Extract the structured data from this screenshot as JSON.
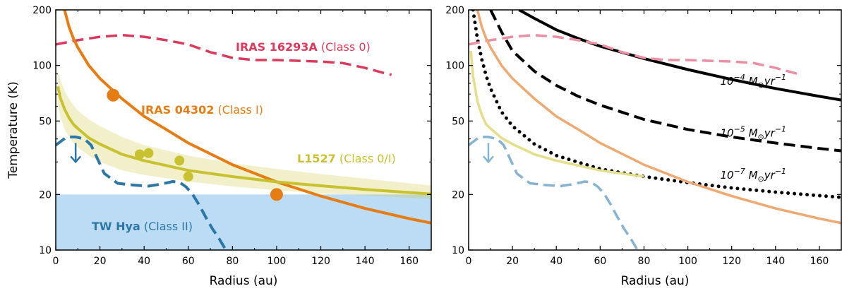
{
  "chart_data": [
    {
      "type": "line",
      "xlabel": "Radius (au)",
      "ylabel": "Temperature (K)",
      "xlim": [
        0,
        170
      ],
      "ylim": [
        10,
        200
      ],
      "yscale": "log",
      "xticks": [
        "0",
        "20",
        "40",
        "60",
        "80",
        "100",
        "120",
        "140",
        "160"
      ],
      "yticks": [
        "10",
        "20",
        "50",
        "100",
        "200"
      ],
      "shaded_regions": [
        {
          "name": "TW Hya",
          "label": "(Class II)",
          "ymin": 10,
          "ymax": 20,
          "color": "#bcdcf5"
        }
      ],
      "series": [
        {
          "name": "IRAS 16293A",
          "label": "(Class 0)",
          "color": "#dc3a5c",
          "style": "dashed",
          "x": [
            0,
            10,
            20,
            30,
            40,
            50,
            60,
            70,
            80,
            90,
            100,
            110,
            120,
            130,
            140,
            150,
            152
          ],
          "y": [
            130,
            137,
            143,
            146,
            143,
            137,
            130,
            118,
            110,
            107,
            107,
            106,
            105,
            103,
            97,
            90,
            89
          ]
        },
        {
          "name": "IRAS 04302",
          "label": "(Class I)",
          "color": "#e57c14",
          "style": "solid",
          "x": [
            4,
            6,
            8,
            10,
            15,
            20,
            30,
            40,
            50,
            60,
            80,
            100,
            120,
            140,
            160,
            170
          ],
          "y": [
            200,
            162,
            140,
            125,
            100,
            85,
            66,
            53,
            45,
            38,
            29,
            23.4,
            19.6,
            16.8,
            14.8,
            14.0
          ],
          "points": {
            "x": [
              26,
              100
            ],
            "y": [
              69,
              20
            ]
          }
        },
        {
          "name": "L1527",
          "label": "(Class 0/I)",
          "color": "#c8c230",
          "style": "solid",
          "x": [
            1,
            2,
            4,
            6,
            8,
            10,
            15,
            20,
            30,
            40,
            60,
            80,
            100,
            120,
            140,
            160,
            170
          ],
          "y": [
            77,
            67,
            58,
            52,
            48,
            45.5,
            40.5,
            37.5,
            33,
            30.5,
            27,
            25,
            23.4,
            22.3,
            21.3,
            20.5,
            20.1
          ],
          "band_low": [
            61,
            53,
            45,
            41,
            38,
            36,
            32.5,
            30,
            27,
            25.5,
            23.5,
            22.1,
            21.1,
            20.3,
            19.8,
            19.2,
            19
          ],
          "band_high": [
            95,
            84,
            73,
            66,
            61,
            57,
            51,
            47,
            41,
            37,
            32.5,
            29.5,
            27.5,
            25.8,
            24.4,
            23,
            22.4
          ],
          "points": {
            "x": [
              38,
              42,
              56,
              60
            ],
            "y": [
              33,
              33.5,
              30.5,
              25
            ]
          }
        },
        {
          "name": "TW Hya",
          "label": "(Class II)",
          "color": "#2d77a8",
          "style": "dashed",
          "x": [
            0,
            5,
            9,
            13,
            16,
            19,
            22,
            28,
            35,
            42,
            48,
            53,
            56,
            59,
            62,
            65,
            68,
            71,
            74,
            76,
            77
          ],
          "y": [
            37,
            41,
            41,
            40,
            37,
            31,
            26,
            23,
            22.5,
            22.2,
            22.8,
            23.5,
            23.3,
            22,
            20,
            17.5,
            15,
            13,
            11.5,
            10.5,
            10
          ],
          "upper_limit_arrow": {
            "x": 9,
            "y_from": 38,
            "y_to": 30
          }
        }
      ]
    },
    {
      "type": "line",
      "xlabel": "Radius (au)",
      "ylabel": "",
      "xlim": [
        0,
        170
      ],
      "ylim": [
        10,
        200
      ],
      "yscale": "log",
      "xticks": [
        "0",
        "20",
        "40",
        "60",
        "80",
        "100",
        "120",
        "140",
        "160"
      ],
      "yticks": [
        "10",
        "20",
        "50",
        "100",
        "200"
      ],
      "mass_labels": [
        {
          "text": "10",
          "exp": "−4",
          "unit": "M",
          "sub": "⊙",
          "rate": "yr",
          "rate_exp": "−1",
          "x": 118,
          "y": 82
        },
        {
          "text": "10",
          "exp": "−5",
          "unit": "M",
          "sub": "⊙",
          "rate": "yr",
          "rate_exp": "−1",
          "x": 118,
          "y": 43
        },
        {
          "text": "10",
          "exp": "−7",
          "unit": "M",
          "sub": "⊙",
          "rate": "yr",
          "rate_exp": "−1",
          "x": 118,
          "y": 25.5
        }
      ],
      "series": [
        {
          "name": "1e-4",
          "color": "#000000",
          "style": "solid",
          "x": [
            23,
            30,
            40,
            50,
            60,
            80,
            100,
            120,
            140,
            160,
            170
          ],
          "y": [
            200,
            180,
            156,
            140,
            127,
            109,
            95,
            84,
            75,
            68,
            65
          ]
        },
        {
          "name": "1e-5",
          "color": "#000000",
          "style": "dashed",
          "x": [
            10,
            15,
            20,
            30,
            40,
            50,
            60,
            80,
            100,
            120,
            140,
            160,
            170
          ],
          "y": [
            200,
            152,
            120,
            93,
            78,
            68,
            61,
            51,
            45,
            41,
            38,
            35.5,
            34.5
          ]
        },
        {
          "name": "1e-7",
          "color": "#000000",
          "style": "dotted",
          "x": [
            2,
            4,
            6,
            8,
            10,
            15,
            20,
            30,
            40,
            60,
            80,
            100,
            120,
            140,
            160,
            170
          ],
          "y": [
            200,
            140,
            108,
            88,
            75,
            56,
            47,
            37.5,
            32.5,
            27.5,
            25,
            23.2,
            21.7,
            20.6,
            19.7,
            19.3
          ]
        },
        {
          "name": "IRAS 16293A",
          "color": "#ec8fa4",
          "style": "dashed",
          "x": [
            0,
            10,
            20,
            30,
            40,
            50,
            60,
            70,
            80,
            90,
            100,
            110,
            120,
            130,
            140,
            150,
            152
          ],
          "y": [
            130,
            137,
            143,
            146,
            143,
            137,
            130,
            118,
            110,
            107,
            107,
            106,
            105,
            103,
            97,
            90,
            89
          ]
        },
        {
          "name": "IRAS 04302",
          "color": "#eeaa72",
          "style": "solid",
          "x": [
            4,
            6,
            8,
            10,
            15,
            20,
            30,
            40,
            50,
            60,
            80,
            100,
            120,
            140,
            160,
            170
          ],
          "y": [
            200,
            162,
            140,
            125,
            100,
            85,
            66,
            53,
            45,
            38,
            29,
            23.4,
            19.6,
            16.8,
            14.8,
            14.0
          ]
        },
        {
          "name": "L1527",
          "color": "#e3df8a",
          "style": "solid",
          "x": [
            1,
            2,
            4,
            6,
            8,
            10,
            15,
            20,
            30,
            40,
            60,
            80
          ],
          "y": [
            120,
            88,
            64,
            54,
            48,
            45.5,
            40.5,
            37.5,
            33,
            30.5,
            27,
            25
          ]
        },
        {
          "name": "TW Hya",
          "color": "#86b3d1",
          "style": "dashed",
          "x": [
            0,
            5,
            9,
            13,
            16,
            19,
            22,
            28,
            35,
            42,
            48,
            53,
            56,
            59,
            62,
            65,
            68,
            71,
            74,
            76,
            77
          ],
          "y": [
            37,
            41,
            41,
            40,
            37,
            31,
            26,
            23,
            22.5,
            22.2,
            22.8,
            23.5,
            23.3,
            22,
            20,
            17.5,
            15,
            13,
            11.5,
            10.5,
            10
          ],
          "upper_limit_arrow": {
            "x": 9,
            "y_from": 38,
            "y_to": 30
          }
        }
      ]
    }
  ],
  "labels": {
    "iras16293": {
      "name": "IRAS 16293A",
      "cls": "(Class 0)"
    },
    "iras04302": {
      "name": "IRAS 04302",
      "cls": "(Class I)"
    },
    "l1527": {
      "name": "L1527",
      "cls": "(Class 0/I)"
    },
    "twhya": {
      "name": "TW Hya",
      "cls": "(Class II)"
    }
  }
}
